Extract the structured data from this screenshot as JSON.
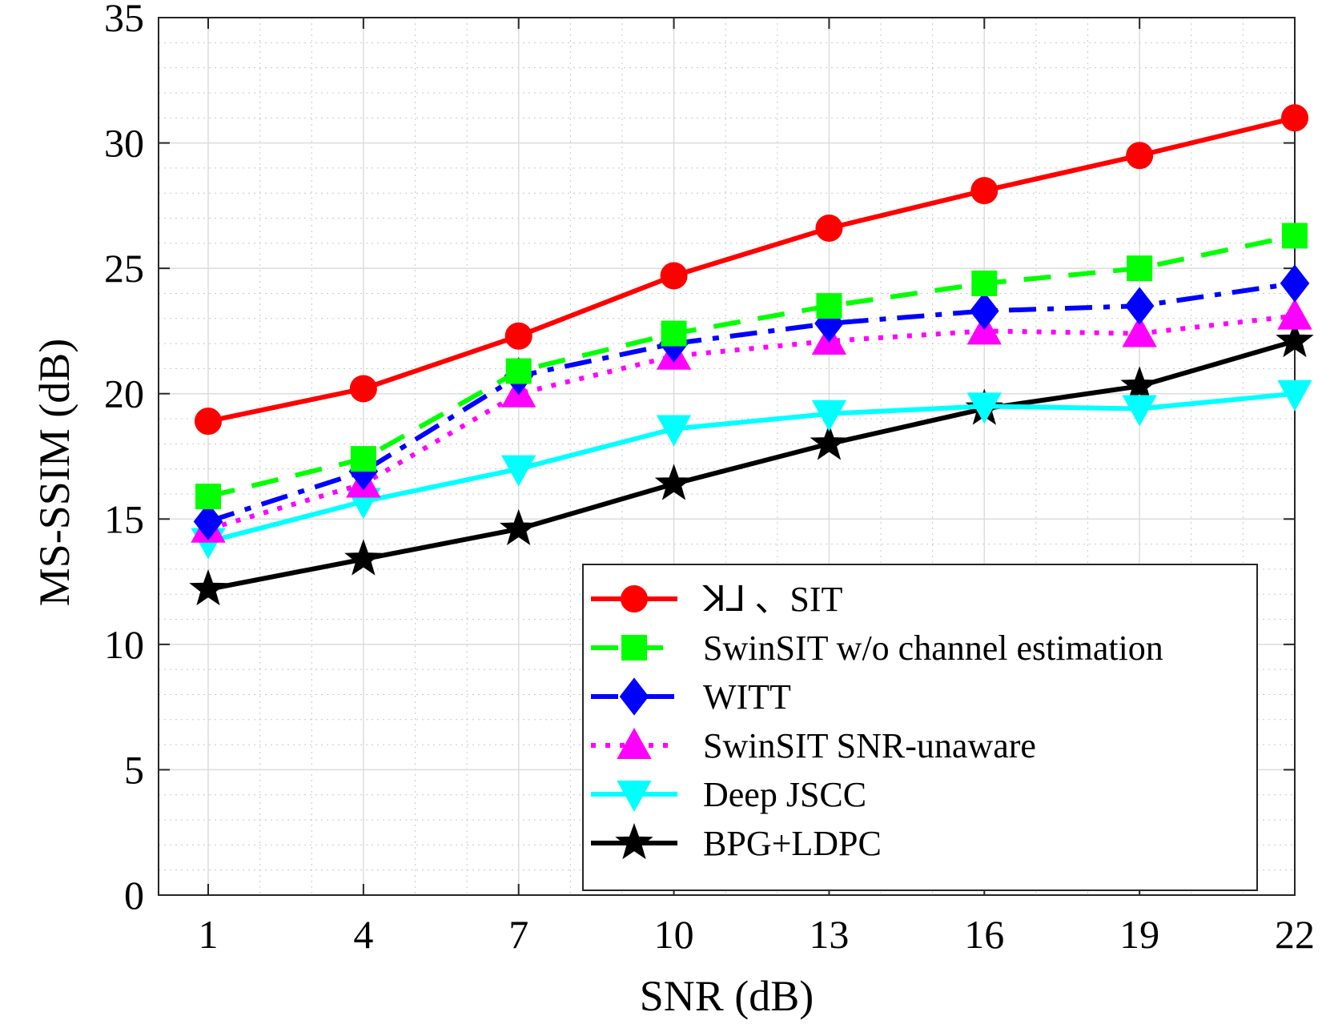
{
  "chart_data": {
    "type": "line",
    "title": "",
    "xlabel": "SNR (dB)",
    "ylabel": "MS-SSIM (dB)",
    "x": [
      1,
      4,
      7,
      10,
      13,
      16,
      19,
      22
    ],
    "xlim": [
      0,
      22
    ],
    "ylim": [
      0,
      35
    ],
    "xticks": [
      "1",
      "4",
      "7",
      "10",
      "13",
      "16",
      "19",
      "22"
    ],
    "yticks": [
      "0",
      "5",
      "10",
      "15",
      "20",
      "25",
      "30",
      "35"
    ],
    "grid": true,
    "minor_grid": true,
    "legend_position": "bottom-right",
    "series": [
      {
        "name": "ꓘ⅃ 、SIT",
        "color": "#ff0000",
        "marker": "circle",
        "dash": "solid",
        "values": [
          18.9,
          20.2,
          22.3,
          24.7,
          26.6,
          28.1,
          29.5,
          31.0
        ]
      },
      {
        "name": "SwinSIT w/o channel estimation",
        "color": "#00ff00",
        "marker": "square",
        "dash": "dashed",
        "values": [
          15.9,
          17.4,
          20.9,
          22.4,
          23.5,
          24.4,
          25.0,
          26.3
        ]
      },
      {
        "name": "WITT",
        "color": "#0000ff",
        "marker": "diamond",
        "dash": "dashdot",
        "values": [
          14.9,
          16.9,
          20.7,
          22.0,
          22.8,
          23.3,
          23.5,
          24.4
        ]
      },
      {
        "name": "SwinSIT SNR-unaware",
        "color": "#ff00ff",
        "marker": "triangle-up",
        "dash": "dotted",
        "values": [
          14.6,
          16.4,
          20.0,
          21.5,
          22.1,
          22.5,
          22.4,
          23.1
        ]
      },
      {
        "name": "Deep JSCC",
        "color": "#00ffff",
        "marker": "triangle-down",
        "dash": "solid",
        "values": [
          14.1,
          15.7,
          17.0,
          18.6,
          19.2,
          19.5,
          19.4,
          20.0
        ]
      },
      {
        "name": "BPG+LDPC",
        "color": "#000000",
        "marker": "star",
        "dash": "solid",
        "values": [
          12.2,
          13.4,
          14.6,
          16.4,
          18.0,
          19.4,
          20.3,
          22.1
        ]
      }
    ]
  }
}
